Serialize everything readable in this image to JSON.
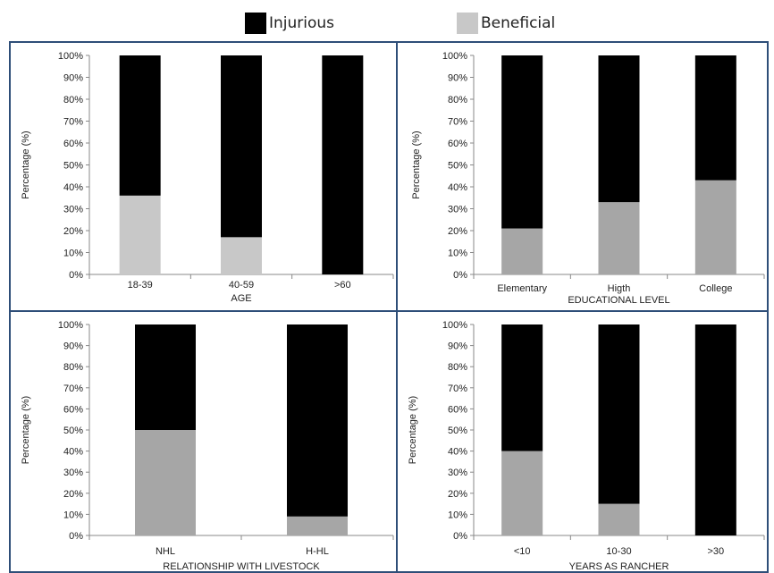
{
  "legend": {
    "injurious_label": "Injurious",
    "beneficial_label": "Beneficial",
    "injurious_color": "#000000",
    "beneficial_color": "#c8c8c8"
  },
  "colors": {
    "injurious": "#000000",
    "beneficial_light": "#c8c8c8",
    "beneficial_dark": "#a6a6a6",
    "panel_border": "#2e4e78"
  },
  "chart_data": [
    {
      "type": "bar",
      "stacked": true,
      "xlabel": "AGE",
      "ylabel": "Percentage (%)",
      "ylim": [
        0,
        100
      ],
      "yticks": [
        "0%",
        "10%",
        "20%",
        "30%",
        "40%",
        "50%",
        "60%",
        "70%",
        "80%",
        "90%",
        "100%"
      ],
      "categories": [
        "18-39",
        "40-59",
        ">60"
      ],
      "series": [
        {
          "name": "Beneficial",
          "values": [
            36,
            17,
            0
          ]
        },
        {
          "name": "Injurious",
          "values": [
            64,
            83,
            100
          ]
        }
      ]
    },
    {
      "type": "bar",
      "stacked": true,
      "xlabel": "EDUCATIONAL LEVEL",
      "ylabel": "Percentage (%)",
      "ylim": [
        0,
        100
      ],
      "yticks": [
        "0%",
        "10%",
        "20%",
        "30%",
        "40%",
        "50%",
        "60%",
        "70%",
        "80%",
        "90%",
        "100%"
      ],
      "categories": [
        "Elementary",
        "Higth",
        "College"
      ],
      "series": [
        {
          "name": "Beneficial",
          "values": [
            21,
            33,
            43
          ]
        },
        {
          "name": "Injurious",
          "values": [
            79,
            67,
            57
          ]
        }
      ]
    },
    {
      "type": "bar",
      "stacked": true,
      "xlabel": "RELATIONSHIP WITH LIVESTOCK",
      "ylabel": "Percentage (%)",
      "ylim": [
        0,
        100
      ],
      "yticks": [
        "0%",
        "10%",
        "20%",
        "30%",
        "40%",
        "50%",
        "60%",
        "70%",
        "80%",
        "90%",
        "100%"
      ],
      "categories": [
        "NHL",
        "H-HL"
      ],
      "series": [
        {
          "name": "Beneficial",
          "values": [
            50,
            9
          ]
        },
        {
          "name": "Injurious",
          "values": [
            50,
            91
          ]
        }
      ]
    },
    {
      "type": "bar",
      "stacked": true,
      "xlabel": "YEARS AS RANCHER",
      "ylabel": "Percentage (%)",
      "ylim": [
        0,
        100
      ],
      "yticks": [
        "0%",
        "10%",
        "20%",
        "30%",
        "40%",
        "50%",
        "60%",
        "70%",
        "80%",
        "90%",
        "100%"
      ],
      "categories": [
        "<10",
        "10-30",
        ">30"
      ],
      "series": [
        {
          "name": "Beneficial",
          "values": [
            40,
            15,
            0
          ]
        },
        {
          "name": "Injurious",
          "values": [
            60,
            85,
            100
          ]
        }
      ]
    }
  ]
}
